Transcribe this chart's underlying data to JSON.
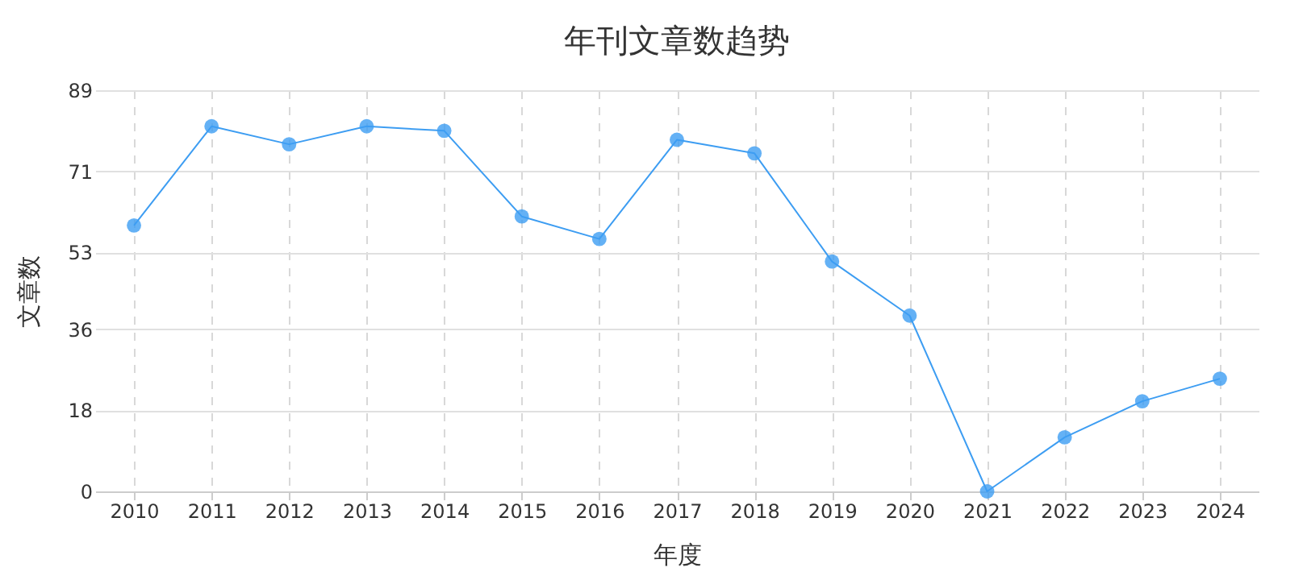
{
  "chart_data": {
    "type": "line",
    "title": "年刊文章数趋势",
    "xlabel": "年度",
    "ylabel": "文章数",
    "categories": [
      "2010",
      "2011",
      "2012",
      "2013",
      "2014",
      "2015",
      "2016",
      "2017",
      "2018",
      "2019",
      "2020",
      "2021",
      "2022",
      "2023",
      "2024"
    ],
    "series": [
      {
        "color": "#3d9df2",
        "values": [
          59,
          81,
          77,
          81,
          80,
          61,
          56,
          78,
          75,
          51,
          39,
          0,
          12,
          20,
          25
        ]
      }
    ],
    "ylim": [
      0,
      89
    ],
    "yticks": [
      0,
      18,
      36,
      53,
      71,
      89
    ],
    "grid": true,
    "marker": "circle",
    "line_style": "solid"
  }
}
